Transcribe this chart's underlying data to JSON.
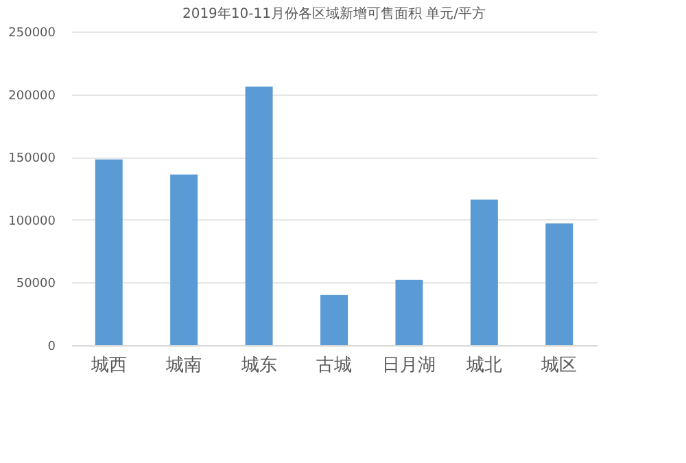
{
  "chart_data": {
    "type": "bar",
    "title": "2019年10-11月份各区域新增可售面积 单元/平方",
    "categories": [
      "城西",
      "城南",
      "城东",
      "古城",
      "日月湖",
      "城北",
      "城区"
    ],
    "values": [
      148000,
      136000,
      206000,
      40000,
      52000,
      116000,
      97000
    ],
    "color": "#5b9bd5",
    "ylim": [
      0,
      250000
    ],
    "yticks": [
      0,
      50000,
      100000,
      150000,
      200000,
      250000
    ],
    "grid": "y"
  }
}
